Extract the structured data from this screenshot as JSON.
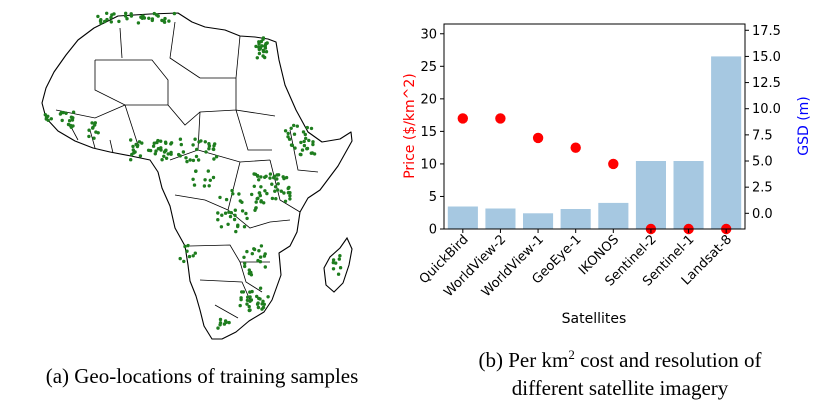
{
  "captions": {
    "a": "(a) Geo-locations of training samples",
    "b_pre": "(b) Per km",
    "b_sup": "2",
    "b_post": " cost and resolution of",
    "b_line2": "different satellite imagery"
  },
  "map": {
    "point_color": "#1e7d1e",
    "border_color": "#000000"
  },
  "chart_data": {
    "type": "bar",
    "title": "",
    "categories": [
      "QuickBird",
      "WorldView-2",
      "WorldView-1",
      "GeoEye-1",
      "IKONOS",
      "Sentinel-2",
      "Sentinel-1",
      "Landsat-8"
    ],
    "xlabel": "Satellites",
    "series": [
      {
        "axis": "left",
        "kind": "scatter",
        "color": "#ff0000",
        "values": [
          17,
          17,
          14,
          12.5,
          10,
          0,
          0,
          0
        ]
      },
      {
        "axis": "right",
        "kind": "bar",
        "color": "#a6c8e1",
        "values": [
          0.65,
          0.46,
          0,
          0.41,
          1,
          5,
          5,
          15
        ]
      }
    ],
    "left_axis": {
      "label": "Price ($/km^2)",
      "color": "#ff0000",
      "ylim": [
        0,
        31.5
      ],
      "ticks": [
        0,
        5,
        10,
        15,
        20,
        25,
        30
      ]
    },
    "right_axis": {
      "label": "GSD (m)",
      "color": "#0000ff",
      "ylim": [
        -1.5,
        18.1
      ],
      "ticks": [
        "0.0",
        "2.5",
        "5.0",
        "7.5",
        "10.0",
        "12.5",
        "15.0",
        "17.5"
      ]
    },
    "grid": false,
    "legend": "none"
  }
}
